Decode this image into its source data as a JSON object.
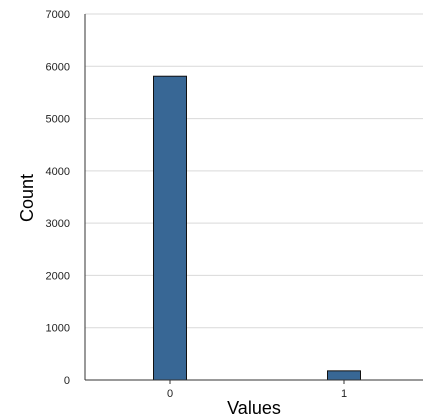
{
  "chart_data": {
    "type": "bar",
    "title": "",
    "xlabel": "Values",
    "ylabel": "Count",
    "categories": [
      "0",
      "1"
    ],
    "values": [
      5810,
      175
    ],
    "ylim": [
      0,
      7000
    ],
    "yticks": [
      0,
      1000,
      2000,
      3000,
      4000,
      5000,
      6000,
      7000
    ],
    "ytick_labels": [
      "0",
      "1000",
      "2000",
      "3000",
      "4000",
      "5000",
      "6000",
      "7000"
    ],
    "grid": true,
    "legend": "none",
    "colors": {
      "bar_fill": "#386795",
      "bar_stroke": "#111111",
      "grid": "#d9d9d9",
      "axis": "#333333"
    }
  }
}
